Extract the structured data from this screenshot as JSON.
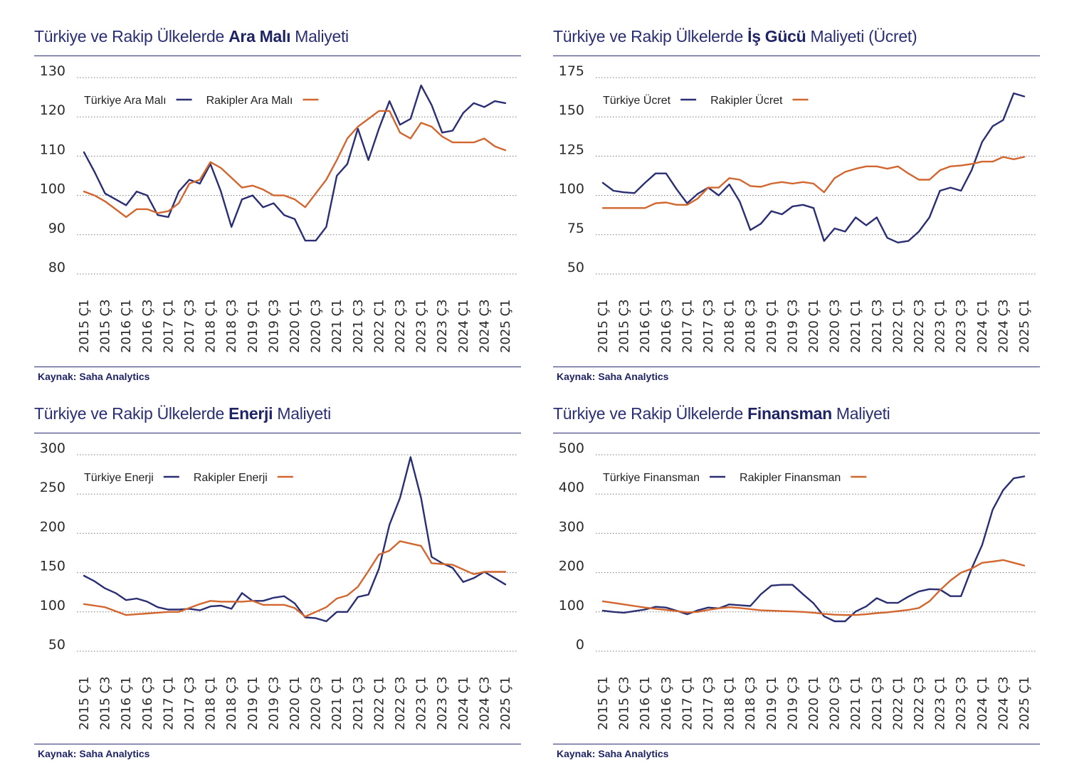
{
  "colors": {
    "turkiye": "#2a2e72",
    "rakipler": "#d2662f",
    "grid": "#7a7a7a",
    "title": "#2a2e72"
  },
  "panels": [
    {
      "title_pre": "Türkiye ve Rakip Ülkelerde ",
      "title_bold": "Ara Malı",
      "title_post": " Maliyeti",
      "source": "Kaynak: Saha Analytics"
    },
    {
      "title_pre": "Türkiye ve Rakip Ülkelerde ",
      "title_bold": "İş Gücü",
      "title_post": " Maliyeti (Ücret)",
      "source": "Kaynak: Saha Analytics"
    },
    {
      "title_pre": "Türkiye ve Rakip Ülkelerde ",
      "title_bold": "Enerji",
      "title_post": " Maliyeti",
      "source": "Kaynak: Saha Analytics"
    },
    {
      "title_pre": "Türkiye ve Rakip Ülkelerde ",
      "title_bold": "Finansman",
      "title_post": " Maliyeti",
      "source": "Kaynak: Saha Analytics"
    }
  ],
  "chart_data": [
    {
      "type": "line",
      "title": "Türkiye ve Rakip Ülkelerde Ara Malı Maliyeti",
      "x": [
        "2015 Ç1",
        "2015 Ç2",
        "2015 Ç3",
        "2015 Ç4",
        "2016 Ç1",
        "2016 Ç2",
        "2016 Ç3",
        "2016 Ç4",
        "2017 Ç1",
        "2017 Ç2",
        "2017 Ç3",
        "2017 Ç4",
        "2018 Ç1",
        "2018 Ç2",
        "2018 Ç3",
        "2018 Ç4",
        "2019 Ç1",
        "2019 Ç2",
        "2019 Ç3",
        "2019 Ç4",
        "2020 Ç1",
        "2020 Ç2",
        "2020 Ç3",
        "2020 Ç4",
        "2021 Ç1",
        "2021 Ç2",
        "2021 Ç3",
        "2021 Ç4",
        "2022 Ç1",
        "2022 Ç2",
        "2022 Ç3",
        "2022 Ç4",
        "2023 Ç1",
        "2023 Ç2",
        "2023 Ç3",
        "2023 Ç4",
        "2024 Ç1",
        "2024 Ç2",
        "2024 Ç3",
        "2024 Ç4",
        "2025 Ç1"
      ],
      "tick_labels": [
        "2015 Ç1",
        "2015 Ç3",
        "2016 Ç1",
        "2016 Ç3",
        "2017 Ç1",
        "2017 Ç3",
        "2018 Ç1",
        "2018 Ç3",
        "2019 Ç1",
        "2019 Ç3",
        "2020 Ç1",
        "2020 Ç3",
        "2021 Ç1",
        "2021 Ç3",
        "2022 Ç1",
        "2022 Ç3",
        "2023 Ç1",
        "2023 Ç3",
        "2024 Ç1",
        "2024 Ç3",
        "2025 Ç1"
      ],
      "yticks": [
        80,
        90,
        100,
        110,
        120,
        130
      ],
      "ylim": [
        80,
        130
      ],
      "grid": true,
      "legend": "top-left",
      "series": [
        {
          "name": "Türkiye Ara Malı",
          "values": [
            111,
            106,
            100.5,
            99,
            97.5,
            101,
            100,
            95,
            94.5,
            101,
            104,
            103,
            108,
            101,
            92,
            99,
            100,
            97,
            98,
            95,
            94,
            88.5,
            88.5,
            92,
            105,
            108,
            117,
            109,
            117,
            124,
            118,
            119.5,
            128,
            123,
            116,
            116.5,
            121,
            123.5,
            122.5,
            124,
            123.5
          ]
        },
        {
          "name": "Rakipler Ara Malı",
          "values": [
            101,
            100,
            98.5,
            96.5,
            94.5,
            96.5,
            96.5,
            95.5,
            96,
            98,
            103,
            104,
            108.5,
            107,
            104.5,
            102,
            102.5,
            101.5,
            100,
            100,
            99,
            97,
            100.5,
            104,
            109,
            114.5,
            117.5,
            119.5,
            121.5,
            121.5,
            116,
            114.5,
            118.5,
            117.5,
            115,
            113.5,
            113.5,
            113.5,
            114.5,
            112.5,
            111.5
          ]
        }
      ]
    },
    {
      "type": "line",
      "title": "Türkiye ve Rakip Ülkelerde İş Gücü Maliyeti (Ücret)",
      "x": [
        "2015 Ç1",
        "2015 Ç2",
        "2015 Ç3",
        "2015 Ç4",
        "2016 Ç1",
        "2016 Ç2",
        "2016 Ç3",
        "2016 Ç4",
        "2017 Ç1",
        "2017 Ç2",
        "2017 Ç3",
        "2017 Ç4",
        "2018 Ç1",
        "2018 Ç2",
        "2018 Ç3",
        "2018 Ç4",
        "2019 Ç1",
        "2019 Ç2",
        "2019 Ç3",
        "2019 Ç4",
        "2020 Ç1",
        "2020 Ç2",
        "2020 Ç3",
        "2020 Ç4",
        "2021 Ç1",
        "2021 Ç2",
        "2021 Ç3",
        "2021 Ç4",
        "2022 Ç1",
        "2022 Ç2",
        "2022 Ç3",
        "2022 Ç4",
        "2023 Ç1",
        "2023 Ç2",
        "2023 Ç3",
        "2023 Ç4",
        "2024 Ç1",
        "2024 Ç2",
        "2024 Ç3",
        "2024 Ç4",
        "2025 Ç1"
      ],
      "tick_labels": [
        "2015 Ç1",
        "2015 Ç3",
        "2016 Ç1",
        "2016 Ç3",
        "2017 Ç1",
        "2017 Ç3",
        "2018 Ç1",
        "2018 Ç3",
        "2019 Ç1",
        "2019 Ç3",
        "2020 Ç1",
        "2020 Ç3",
        "2021 Ç1",
        "2021 Ç3",
        "2022 Ç1",
        "2022 Ç3",
        "2023 Ç1",
        "2023 Ç3",
        "2024 Ç1",
        "2024 Ç3",
        "2025 Ç1"
      ],
      "yticks": [
        50,
        75,
        100,
        125,
        150,
        175
      ],
      "ylim": [
        50,
        175
      ],
      "grid": true,
      "legend": "top-left",
      "series": [
        {
          "name": "Türkiye Ücret",
          "values": [
            108,
            103,
            102,
            101.5,
            108,
            114,
            114,
            104,
            95,
            101,
            105,
            100,
            107,
            96,
            78,
            82,
            90,
            88,
            93,
            94,
            92,
            71,
            79,
            77,
            86,
            81,
            86,
            73,
            70,
            71,
            77,
            86,
            103,
            105,
            103,
            116,
            134,
            144,
            148,
            165,
            163
          ]
        },
        {
          "name": "Rakipler Ücret",
          "values": [
            92,
            92,
            92,
            92,
            92,
            95,
            95.5,
            94,
            94,
            98,
            105,
            105,
            111,
            110,
            106,
            105.5,
            107.5,
            108.5,
            107.5,
            108.5,
            107.5,
            102,
            111,
            115,
            117,
            118.5,
            118.5,
            117,
            118.5,
            114,
            110,
            110,
            116,
            118.5,
            119,
            120,
            121.5,
            121.5,
            124.5,
            123,
            124.5
          ]
        }
      ]
    },
    {
      "type": "line",
      "title": "Türkiye ve Rakip Ülkelerde Enerji Maliyeti",
      "x": [
        "2015 Ç1",
        "2015 Ç2",
        "2015 Ç3",
        "2015 Ç4",
        "2016 Ç1",
        "2016 Ç2",
        "2016 Ç3",
        "2016 Ç4",
        "2017 Ç1",
        "2017 Ç2",
        "2017 Ç3",
        "2017 Ç4",
        "2018 Ç1",
        "2018 Ç2",
        "2018 Ç3",
        "2018 Ç4",
        "2019 Ç1",
        "2019 Ç2",
        "2019 Ç3",
        "2019 Ç4",
        "2020 Ç1",
        "2020 Ç2",
        "2020 Ç3",
        "2020 Ç4",
        "2021 Ç1",
        "2021 Ç2",
        "2021 Ç3",
        "2021 Ç4",
        "2022 Ç1",
        "2022 Ç2",
        "2022 Ç3",
        "2022 Ç4",
        "2023 Ç1",
        "2023 Ç2",
        "2023 Ç3",
        "2023 Ç4",
        "2024 Ç1",
        "2024 Ç2",
        "2024 Ç3",
        "2024 Ç4",
        "2025 Ç1"
      ],
      "tick_labels": [
        "2015 Ç1",
        "2015 Ç3",
        "2016 Ç1",
        "2016 Ç3",
        "2017 Ç1",
        "2017 Ç3",
        "2018 Ç1",
        "2018 Ç3",
        "2019 Ç1",
        "2019 Ç3",
        "2020 Ç1",
        "2020 Ç3",
        "2021 Ç1",
        "2021 Ç3",
        "2022 Ç1",
        "2022 Ç3",
        "2023 Ç1",
        "2023 Ç3",
        "2024 Ç1",
        "2024 Ç3",
        "2025 Ç1"
      ],
      "yticks": [
        50,
        100,
        150,
        200,
        250,
        300
      ],
      "ylim": [
        50,
        300
      ],
      "grid": true,
      "legend": "top-left",
      "series": [
        {
          "name": "Türkiye Enerji",
          "values": [
            146,
            139,
            130,
            124,
            115,
            117,
            113,
            106,
            103,
            103,
            104,
            102,
            107,
            108,
            104,
            124,
            114,
            114,
            118,
            120,
            111,
            93,
            92,
            88,
            100,
            100,
            119,
            122,
            155,
            211,
            245,
            297,
            245,
            170,
            162,
            156,
            138,
            143,
            151,
            143,
            135
          ]
        },
        {
          "name": "Rakipler Enerji",
          "values": [
            110,
            108,
            106,
            101,
            96,
            97,
            98,
            99,
            100,
            100,
            105,
            110,
            114,
            113,
            113,
            113,
            114,
            109,
            109,
            109,
            105,
            94,
            100,
            106,
            117,
            121,
            132,
            152,
            173,
            178,
            190,
            187,
            184,
            162,
            161,
            160,
            154,
            148,
            151,
            151,
            151
          ]
        }
      ]
    },
    {
      "type": "line",
      "title": "Türkiye ve Rakip Ülkelerde Finansman Maliyeti",
      "x": [
        "2015 Ç1",
        "2015 Ç2",
        "2015 Ç3",
        "2015 Ç4",
        "2016 Ç1",
        "2016 Ç2",
        "2016 Ç3",
        "2016 Ç4",
        "2017 Ç1",
        "2017 Ç2",
        "2017 Ç3",
        "2017 Ç4",
        "2018 Ç1",
        "2018 Ç2",
        "2018 Ç3",
        "2018 Ç4",
        "2019 Ç1",
        "2019 Ç2",
        "2019 Ç3",
        "2019 Ç4",
        "2020 Ç1",
        "2020 Ç2",
        "2020 Ç3",
        "2020 Ç4",
        "2021 Ç1",
        "2021 Ç2",
        "2021 Ç3",
        "2021 Ç4",
        "2022 Ç1",
        "2022 Ç2",
        "2022 Ç3",
        "2022 Ç4",
        "2023 Ç1",
        "2023 Ç2",
        "2023 Ç3",
        "2023 Ç4",
        "2024 Ç1",
        "2024 Ç2",
        "2024 Ç3",
        "2024 Ç4",
        "2025 Ç1"
      ],
      "tick_labels": [
        "2015 Ç1",
        "2015 Ç3",
        "2016 Ç1",
        "2016 Ç3",
        "2017 Ç1",
        "2017 Ç3",
        "2018 Ç1",
        "2018 Ç3",
        "2019 Ç1",
        "2019 Ç3",
        "2020 Ç1",
        "2020 Ç3",
        "2021 Ç1",
        "2021 Ç3",
        "2022 Ç1",
        "2022 Ç3",
        "2023 Ç1",
        "2023 Ç3",
        "2024 Ç1",
        "2024 Ç3",
        "2025 Ç1"
      ],
      "yticks": [
        0,
        100,
        200,
        300,
        400,
        500
      ],
      "ylim": [
        0,
        500
      ],
      "grid": true,
      "legend": "top-left",
      "series": [
        {
          "name": "Türkiye Finansman",
          "values": [
            103,
            100,
            98,
            102,
            106,
            113,
            111,
            103,
            94,
            104,
            111,
            109,
            119,
            117,
            115,
            145,
            167,
            169,
            169,
            145,
            122,
            89,
            76,
            76,
            101,
            114,
            135,
            123,
            123,
            139,
            152,
            158,
            157,
            140,
            140,
            210,
            270,
            360,
            410,
            440,
            445
          ]
        },
        {
          "name": "Rakipler Finansman",
          "values": [
            127,
            123,
            119,
            115,
            111,
            108,
            105,
            102,
            99,
            100,
            105,
            109,
            112,
            110,
            107,
            104,
            103,
            102,
            101,
            100,
            98,
            95,
            93,
            92,
            92,
            94,
            97,
            99,
            102,
            105,
            110,
            127,
            155,
            180,
            200,
            210,
            225,
            228,
            232,
            225,
            218
          ]
        }
      ]
    }
  ]
}
